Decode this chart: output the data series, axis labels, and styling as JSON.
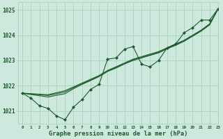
{
  "title": "Graphe pression niveau de la mer (hPa)",
  "bg_color": "#cde8dc",
  "grid_color": "#b0d4c4",
  "line_color": "#1a5c2a",
  "xlim": [
    -0.5,
    23
  ],
  "ylim": [
    1020.5,
    1025.3
  ],
  "yticks": [
    1021,
    1022,
    1023,
    1024,
    1025
  ],
  "xtick_labels": [
    "0",
    "1",
    "2",
    "3",
    "4",
    "5",
    "6",
    "7",
    "8",
    "9",
    "10",
    "11",
    "12",
    "13",
    "14",
    "15",
    "16",
    "17",
    "18",
    "19",
    "20",
    "21",
    "22",
    "23"
  ],
  "jagged_series": [
    1021.7,
    1021.5,
    1021.2,
    1021.1,
    1020.8,
    1020.65,
    1021.15,
    1021.45,
    1021.85,
    1022.05,
    1023.05,
    1023.1,
    1023.45,
    1023.55,
    1022.85,
    1022.75,
    1023.0,
    1023.5,
    1023.65,
    1024.1,
    1024.3,
    1024.6,
    1024.6,
    1025.05
  ],
  "smooth_lines": [
    [
      1021.7,
      1021.68,
      1021.66,
      1021.64,
      1021.72,
      1021.8,
      1021.95,
      1022.1,
      1022.25,
      1022.4,
      1022.6,
      1022.75,
      1022.9,
      1023.05,
      1023.15,
      1023.25,
      1023.35,
      1023.5,
      1023.65,
      1023.8,
      1024.0,
      1024.2,
      1024.45,
      1025.05
    ],
    [
      1021.7,
      1021.67,
      1021.64,
      1021.61,
      1021.68,
      1021.75,
      1021.92,
      1022.08,
      1022.22,
      1022.38,
      1022.58,
      1022.72,
      1022.88,
      1023.02,
      1023.12,
      1023.22,
      1023.32,
      1023.48,
      1023.62,
      1023.78,
      1023.98,
      1024.18,
      1024.43,
      1025.05
    ],
    [
      1021.7,
      1021.65,
      1021.6,
      1021.55,
      1021.62,
      1021.68,
      1021.88,
      1022.05,
      1022.2,
      1022.36,
      1022.56,
      1022.7,
      1022.86,
      1023.0,
      1023.1,
      1023.2,
      1023.3,
      1023.46,
      1023.6,
      1023.76,
      1023.96,
      1024.16,
      1024.41,
      1025.05
    ]
  ]
}
